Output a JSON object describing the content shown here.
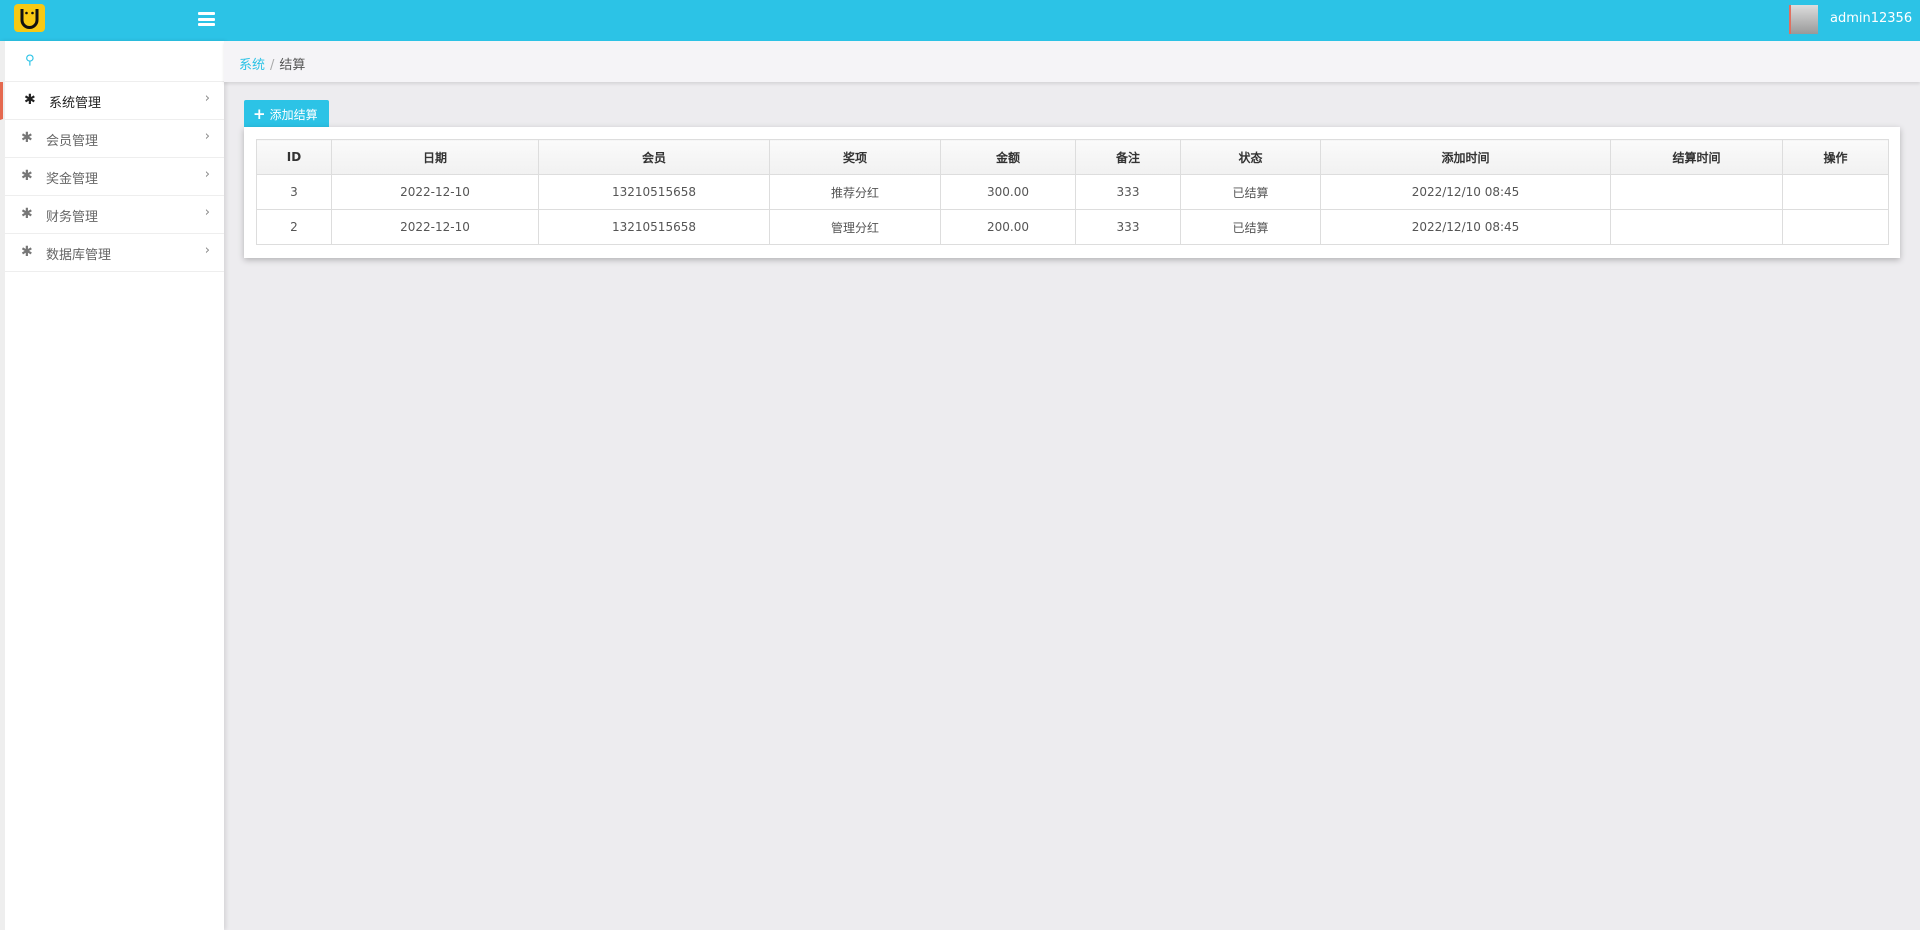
{
  "header": {
    "username": "admin12356"
  },
  "sidebar": {
    "items": [
      {
        "label": "系统管理",
        "active": true
      },
      {
        "label": "会员管理"
      },
      {
        "label": "奖金管理"
      },
      {
        "label": "财务管理"
      },
      {
        "label": "数据库管理"
      }
    ]
  },
  "breadcrumb": {
    "parent": "系统",
    "separator": "/",
    "current": "结算"
  },
  "toolbar": {
    "add_label": "添加结算"
  },
  "table": {
    "columns": [
      "ID",
      "日期",
      "会员",
      "奖项",
      "金额",
      "备注",
      "状态",
      "添加时间",
      "结算时间",
      "操作"
    ],
    "rows": [
      [
        "3",
        "2022-12-10",
        "13210515658",
        "推荐分红",
        "300.00",
        "333",
        "已结算",
        "2022/12/10 08:45",
        "",
        ""
      ],
      [
        "2",
        "2022-12-10",
        "13210515658",
        "管理分红",
        "200.00",
        "333",
        "已结算",
        "2022/12/10 08:45",
        "",
        ""
      ]
    ]
  },
  "colors": {
    "accent": "#2cc3e6",
    "active_marker": "#e5694f",
    "logo": "#f8c913"
  }
}
